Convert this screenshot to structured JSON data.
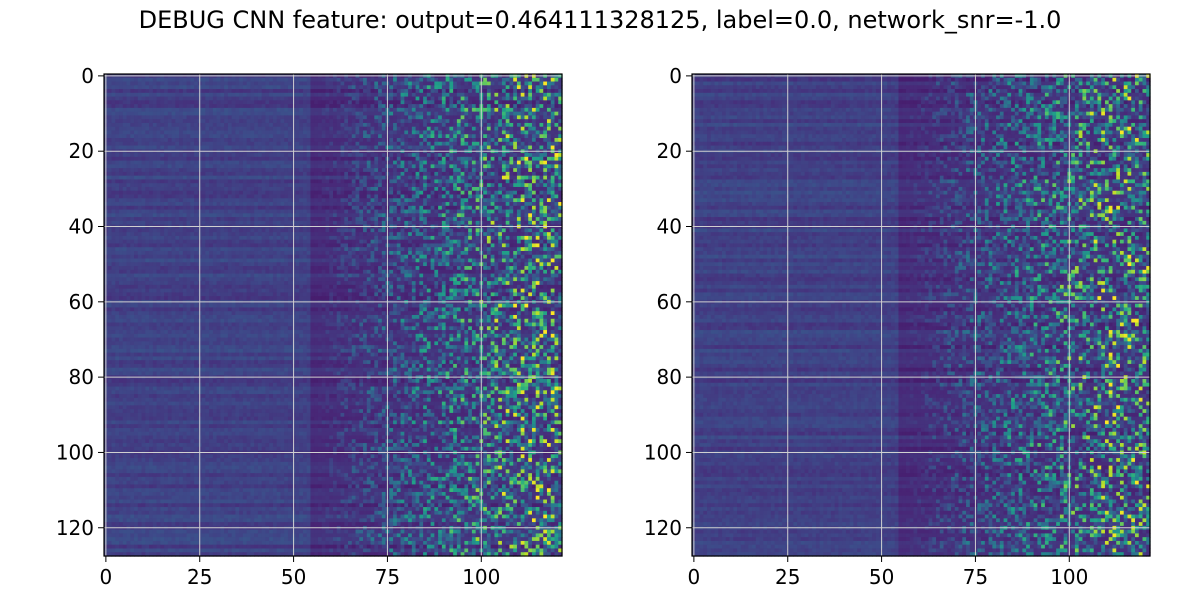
{
  "figure": {
    "title": "DEBUG CNN feature: output=0.464111328125, label=0.0, network_snr=-1.0"
  },
  "chart_data": [
    {
      "type": "heatmap",
      "title": "",
      "xlabel": "",
      "ylabel": "",
      "colormap": "viridis",
      "grid": true,
      "x_range": [
        -0.5,
        121.5
      ],
      "y_range": [
        127.5,
        -0.5
      ],
      "xticks": [
        0,
        25,
        50,
        75,
        100
      ],
      "yticks": [
        0,
        20,
        40,
        60,
        80,
        100,
        120
      ],
      "n_rows": 128,
      "n_cols": 122,
      "seed": 7
    },
    {
      "type": "heatmap",
      "title": "",
      "xlabel": "",
      "ylabel": "",
      "colormap": "viridis",
      "grid": true,
      "x_range": [
        -0.5,
        121.5
      ],
      "y_range": [
        127.5,
        -0.5
      ],
      "xticks": [
        0,
        25,
        50,
        75,
        100
      ],
      "yticks": [
        0,
        20,
        40,
        60,
        80,
        100,
        120
      ],
      "n_rows": 128,
      "n_cols": 122,
      "seed": 19
    }
  ],
  "colors": {
    "viridis_low": "#440154",
    "viridis_mid": "#21918c",
    "viridis_high": "#fde725",
    "grid": "#d0d0d0"
  }
}
